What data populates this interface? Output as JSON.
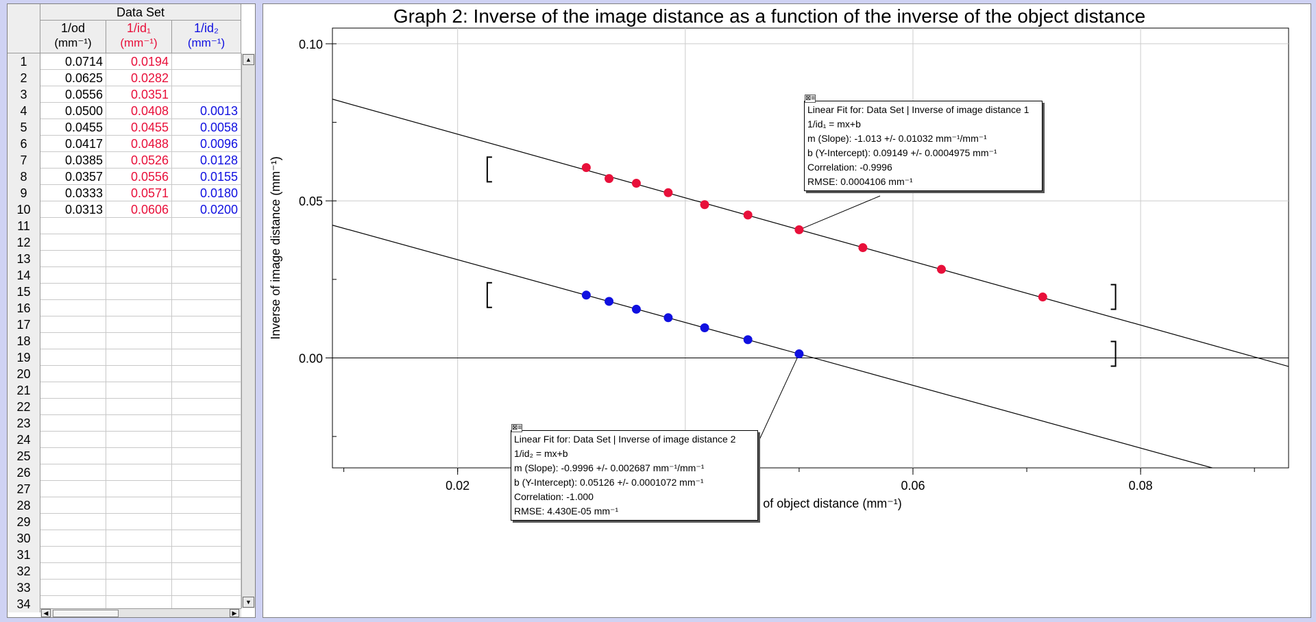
{
  "table": {
    "title": "Data Set",
    "columns": [
      {
        "name": "1/od",
        "unit": "(mm⁻¹)",
        "color": "#000000"
      },
      {
        "name": "1/id₁",
        "unit": "(mm⁻¹)",
        "color": "#e8103a"
      },
      {
        "name": "1/id₂",
        "unit": "(mm⁻¹)",
        "color": "#1010e0"
      }
    ],
    "row_numbers": [
      "1",
      "2",
      "3",
      "4",
      "5",
      "6",
      "7",
      "8",
      "9",
      "10",
      "11",
      "12",
      "13",
      "14",
      "15",
      "16",
      "17",
      "18",
      "19",
      "20",
      "21",
      "22",
      "23",
      "24",
      "25",
      "26",
      "27",
      "28",
      "29",
      "30",
      "31",
      "32",
      "33",
      "34"
    ],
    "rows": [
      [
        "0.0714",
        "0.0194",
        ""
      ],
      [
        "0.0625",
        "0.0282",
        ""
      ],
      [
        "0.0556",
        "0.0351",
        ""
      ],
      [
        "0.0500",
        "0.0408",
        "0.0013"
      ],
      [
        "0.0455",
        "0.0455",
        "0.0058"
      ],
      [
        "0.0417",
        "0.0488",
        "0.0096"
      ],
      [
        "0.0385",
        "0.0526",
        "0.0128"
      ],
      [
        "0.0357",
        "0.0556",
        "0.0155"
      ],
      [
        "0.0333",
        "0.0571",
        "0.0180"
      ],
      [
        "0.0313",
        "0.0606",
        "0.0200"
      ]
    ]
  },
  "chart_data": {
    "type": "scatter",
    "title": "Graph 2: Inverse of the image distance as a function of the inverse of the object distance",
    "xlabel": "Inverse of object distance (mm⁻¹)",
    "ylabel": "Inverse of image distance (mm⁻¹)",
    "xlim": [
      0.009,
      0.093
    ],
    "ylim": [
      -0.035,
      0.105
    ],
    "x_ticks": [
      "0.02",
      "0.04",
      "0.06",
      "0.08"
    ],
    "x_tick_values": [
      0.02,
      0.04,
      0.06,
      0.08
    ],
    "y_ticks": [
      "0.10",
      "0.05",
      "0.00"
    ],
    "y_tick_values": [
      0.1,
      0.05,
      0.0
    ],
    "grid": true,
    "series": [
      {
        "color": "#e8103a",
        "x": [
          0.0714,
          0.0625,
          0.0556,
          0.05,
          0.0455,
          0.0417,
          0.0385,
          0.0357,
          0.0333,
          0.0313
        ],
        "y": [
          0.0194,
          0.0282,
          0.0351,
          0.0408,
          0.0455,
          0.0488,
          0.0526,
          0.0556,
          0.0571,
          0.0606
        ],
        "fit": {
          "m": -1.013,
          "b": 0.09149
        }
      },
      {
        "color": "#1010e0",
        "x": [
          0.05,
          0.0455,
          0.0417,
          0.0385,
          0.0357,
          0.0333,
          0.0313
        ],
        "y": [
          0.0013,
          0.0058,
          0.0096,
          0.0128,
          0.0155,
          0.018,
          0.02
        ],
        "fit": {
          "m": -0.9996,
          "b": 0.05126
        }
      }
    ],
    "annotations": [
      {
        "lines": [
          "Linear Fit for: Data Set | Inverse of image distance 1",
          "1/id₁ = mx+b",
          "m (Slope): -1.013 +/- 0.01032 mm⁻¹/mm⁻¹",
          "b (Y-Intercept): 0.09149 +/- 0.0004975 mm⁻¹",
          "Correlation: -0.9996",
          "RMSE: 0.0004106 mm⁻¹"
        ],
        "anchor": [
          0.05,
          0.0408
        ]
      },
      {
        "lines": [
          "Linear Fit for: Data Set | Inverse of image distance 2",
          "1/id₂ = mx+b",
          "m (Slope): -0.9996 +/- 0.002687 mm⁻¹/mm⁻¹",
          "b (Y-Intercept): 0.05126 +/- 0.0001072 mm⁻¹",
          "Correlation: -1.000",
          "RMSE: 4.430E-05 mm⁻¹"
        ],
        "anchor": [
          0.05,
          0.0013
        ]
      }
    ],
    "fit_ranges": [
      {
        "x": [
          0.0226,
          0.0778
        ],
        "y": 0.06
      },
      {
        "x": [
          0.0226,
          0.0778
        ],
        "y": 0.02
      }
    ]
  }
}
